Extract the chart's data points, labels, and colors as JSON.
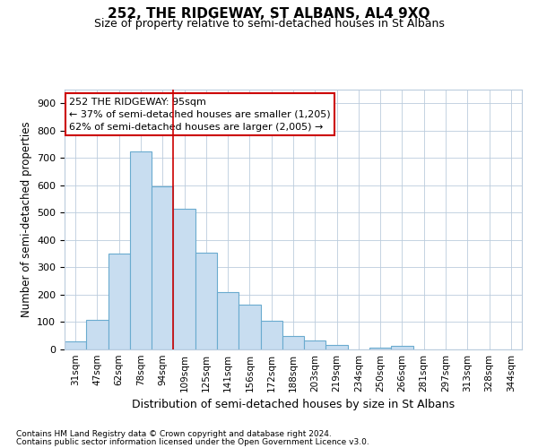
{
  "title_line1": "252, THE RIDGEWAY, ST ALBANS, AL4 9XQ",
  "title_line2": "Size of property relative to semi-detached houses in St Albans",
  "xlabel": "Distribution of semi-detached houses by size in St Albans",
  "ylabel": "Number of semi-detached properties",
  "categories": [
    "31sqm",
    "47sqm",
    "62sqm",
    "78sqm",
    "94sqm",
    "109sqm",
    "125sqm",
    "141sqm",
    "156sqm",
    "172sqm",
    "188sqm",
    "203sqm",
    "219sqm",
    "234sqm",
    "250sqm",
    "266sqm",
    "281sqm",
    "297sqm",
    "313sqm",
    "328sqm",
    "344sqm"
  ],
  "values": [
    30,
    108,
    350,
    725,
    595,
    513,
    355,
    210,
    165,
    105,
    50,
    33,
    15,
    0,
    8,
    12,
    0,
    0,
    0,
    0,
    0
  ],
  "bar_color": "#c8ddf0",
  "bar_edge_color": "#6aabcf",
  "highlight_line_color": "#cc0000",
  "annotation_text": "252 THE RIDGEWAY: 95sqm\n← 37% of semi-detached houses are smaller (1,205)\n62% of semi-detached houses are larger (2,005) →",
  "annotation_box_color": "white",
  "annotation_box_edge_color": "#cc0000",
  "ylim": [
    0,
    950
  ],
  "yticks": [
    0,
    100,
    200,
    300,
    400,
    500,
    600,
    700,
    800,
    900
  ],
  "footer_line1": "Contains HM Land Registry data © Crown copyright and database right 2024.",
  "footer_line2": "Contains public sector information licensed under the Open Government Licence v3.0.",
  "background_color": "#ffffff",
  "grid_color": "#bbccdd"
}
